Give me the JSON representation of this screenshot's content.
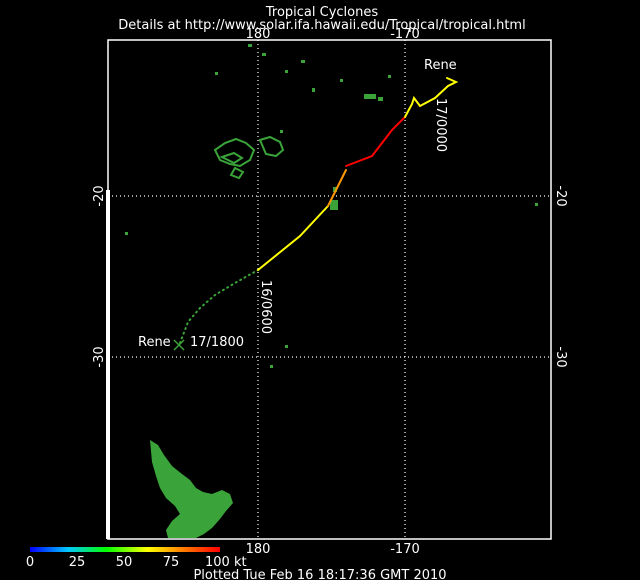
{
  "header": {
    "title": "Tropical Cyclones",
    "subtitle": "Details at http://www.solar.ifa.hawaii.edu/Tropical/tropical.html"
  },
  "axes": {
    "lon_top": [
      "180",
      "-170"
    ],
    "lon_bottom": [
      "180",
      "-170"
    ],
    "lat_left": [
      "-20",
      "-30"
    ],
    "lat_right": [
      "-20",
      "-30"
    ]
  },
  "storm": {
    "name_start": "Rene",
    "name_end": "Rene",
    "label_start_time": "17/0000",
    "label_mid_time": "16/0600",
    "label_end_time": "17/1800"
  },
  "legend": {
    "ticks": [
      "0",
      "25",
      "50",
      "75",
      "100 kt"
    ],
    "colors": [
      "#0000ff",
      "#00c8ff",
      "#00ff00",
      "#ffff00",
      "#ff8000",
      "#ff0000"
    ]
  },
  "footer": {
    "plotted": "Plotted Tue Feb 16 18:17:36 GMT 2010"
  },
  "colors": {
    "land": "#3aa43a",
    "track_dotted": "#00ff00",
    "track_yellow": "#ffff00",
    "track_orange": "#ff9900",
    "track_red": "#ff0000"
  }
}
